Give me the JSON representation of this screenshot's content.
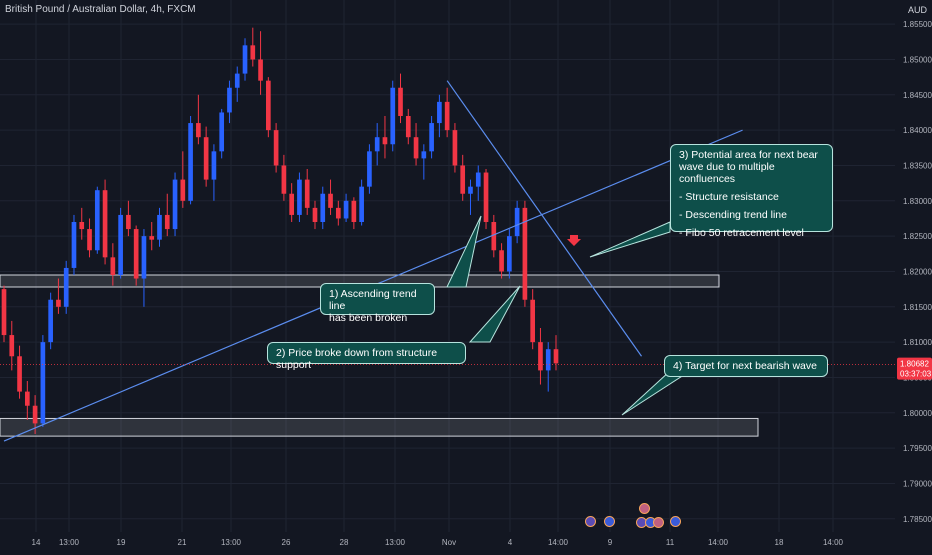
{
  "header": {
    "title": "British Pound / Australian Dollar, 4h, FXCM",
    "currency": "AUD"
  },
  "price_scale": {
    "last_price": "1.80682",
    "countdown": "03:37:03",
    "last_price_color": "#f23645"
  },
  "colors": {
    "background": "#131722",
    "up_candle": "#2962ff",
    "down_candle": "#f23645",
    "trendline": "#5b8def",
    "zone_fill": "#ffffff",
    "callout_fill": "#0e4f4a",
    "arrow": "#f23645"
  },
  "annotations": {
    "note_1": [
      "1) Ascending trend line",
      "has been broken"
    ],
    "note_2": [
      "2) Price broke down from structure support"
    ],
    "note_3_title": [
      "3) Potential area for next bear",
      "wave due to multiple confluences"
    ],
    "note_3_items": [
      "- Structure resistance",
      "- Descending trend line",
      "- Fibo 50 retracement level"
    ],
    "note_4": [
      "4) Target for next bearish wave"
    ]
  },
  "chart_data": {
    "type": "candlestick",
    "title": "British Pound / Australian Dollar, 4h, FXCM",
    "y_axis_ticks": [
      "1.85500",
      "1.85000",
      "1.84500",
      "1.84000",
      "1.83500",
      "1.83000",
      "1.82500",
      "1.82000",
      "1.81500",
      "1.81000",
      "1.80500",
      "1.80000",
      "1.79500",
      "1.79000",
      "1.78500"
    ],
    "x_axis_ticks": [
      "14",
      "13:00",
      "19",
      "21",
      "13:00",
      "26",
      "28",
      "13:00",
      "Nov",
      "4",
      "14:00",
      "9",
      "11",
      "14:00",
      "18",
      "14:00"
    ],
    "ylim": [
      1.782,
      1.857
    ],
    "grid": true,
    "series": [
      {
        "name": "GBPAUD 4h",
        "ohlc": [
          [
            1.8175,
            1.818,
            1.81,
            1.811
          ],
          [
            1.811,
            1.813,
            1.806,
            1.808
          ],
          [
            1.808,
            1.8095,
            1.802,
            1.803
          ],
          [
            1.803,
            1.8045,
            1.799,
            1.801
          ],
          [
            1.801,
            1.8025,
            1.797,
            1.7985
          ],
          [
            1.7985,
            1.811,
            1.798,
            1.81
          ],
          [
            1.81,
            1.817,
            1.809,
            1.816
          ],
          [
            1.816,
            1.819,
            1.814,
            1.815
          ],
          [
            1.815,
            1.8215,
            1.814,
            1.8205
          ],
          [
            1.8205,
            1.828,
            1.8195,
            1.827
          ],
          [
            1.827,
            1.829,
            1.8245,
            1.826
          ],
          [
            1.826,
            1.8275,
            1.822,
            1.823
          ],
          [
            1.823,
            1.832,
            1.8225,
            1.8315
          ],
          [
            1.8315,
            1.833,
            1.821,
            1.822
          ],
          [
            1.822,
            1.824,
            1.818,
            1.8195
          ],
          [
            1.8195,
            1.829,
            1.819,
            1.828
          ],
          [
            1.828,
            1.83,
            1.825,
            1.826
          ],
          [
            1.826,
            1.8265,
            1.818,
            1.819
          ],
          [
            1.819,
            1.826,
            1.815,
            1.825
          ],
          [
            1.825,
            1.827,
            1.823,
            1.8245
          ],
          [
            1.8245,
            1.829,
            1.8235,
            1.828
          ],
          [
            1.828,
            1.831,
            1.825,
            1.826
          ],
          [
            1.826,
            1.834,
            1.825,
            1.833
          ],
          [
            1.833,
            1.837,
            1.829,
            1.83
          ],
          [
            1.83,
            1.842,
            1.8295,
            1.841
          ],
          [
            1.841,
            1.845,
            1.838,
            1.839
          ],
          [
            1.839,
            1.8405,
            1.832,
            1.833
          ],
          [
            1.833,
            1.838,
            1.83,
            1.837
          ],
          [
            1.837,
            1.843,
            1.836,
            1.8425
          ],
          [
            1.8425,
            1.847,
            1.841,
            1.846
          ],
          [
            1.846,
            1.849,
            1.844,
            1.848
          ],
          [
            1.848,
            1.853,
            1.847,
            1.852
          ],
          [
            1.852,
            1.8545,
            1.849,
            1.85
          ],
          [
            1.85,
            1.854,
            1.845,
            1.847
          ],
          [
            1.847,
            1.8475,
            1.839,
            1.84
          ],
          [
            1.84,
            1.841,
            1.834,
            1.835
          ],
          [
            1.835,
            1.8365,
            1.83,
            1.831
          ],
          [
            1.831,
            1.8325,
            1.827,
            1.828
          ],
          [
            1.828,
            1.834,
            1.827,
            1.833
          ],
          [
            1.833,
            1.8345,
            1.828,
            1.829
          ],
          [
            1.829,
            1.83,
            1.826,
            1.827
          ],
          [
            1.827,
            1.832,
            1.826,
            1.831
          ],
          [
            1.831,
            1.833,
            1.828,
            1.829
          ],
          [
            1.829,
            1.83,
            1.8265,
            1.8275
          ],
          [
            1.8275,
            1.831,
            1.827,
            1.83
          ],
          [
            1.83,
            1.8305,
            1.826,
            1.827
          ],
          [
            1.827,
            1.833,
            1.8265,
            1.832
          ],
          [
            1.832,
            1.838,
            1.831,
            1.837
          ],
          [
            1.837,
            1.841,
            1.835,
            1.839
          ],
          [
            1.839,
            1.842,
            1.836,
            1.838
          ],
          [
            1.838,
            1.847,
            1.837,
            1.846
          ],
          [
            1.846,
            1.848,
            1.841,
            1.842
          ],
          [
            1.842,
            1.843,
            1.838,
            1.839
          ],
          [
            1.839,
            1.841,
            1.835,
            1.836
          ],
          [
            1.836,
            1.838,
            1.833,
            1.837
          ],
          [
            1.837,
            1.842,
            1.836,
            1.841
          ],
          [
            1.841,
            1.845,
            1.839,
            1.844
          ],
          [
            1.844,
            1.846,
            1.839,
            1.84
          ],
          [
            1.84,
            1.841,
            1.834,
            1.835
          ],
          [
            1.835,
            1.8365,
            1.83,
            1.831
          ],
          [
            1.831,
            1.833,
            1.828,
            1.832
          ],
          [
            1.832,
            1.835,
            1.83,
            1.834
          ],
          [
            1.834,
            1.8345,
            1.826,
            1.827
          ],
          [
            1.827,
            1.828,
            1.822,
            1.823
          ],
          [
            1.823,
            1.824,
            1.819,
            1.82
          ],
          [
            1.82,
            1.826,
            1.819,
            1.825
          ],
          [
            1.825,
            1.83,
            1.824,
            1.829
          ],
          [
            1.829,
            1.83,
            1.815,
            1.816
          ],
          [
            1.816,
            1.8175,
            1.809,
            1.81
          ],
          [
            1.81,
            1.812,
            1.804,
            1.806
          ],
          [
            1.806,
            1.81,
            1.803,
            1.809
          ],
          [
            1.809,
            1.811,
            1.806,
            1.807
          ]
        ]
      }
    ],
    "zones": [
      {
        "label": "structure support / resistance",
        "low": 1.818,
        "high": 1.8195
      },
      {
        "label": "target zone",
        "low": 1.7967,
        "high": 1.7992
      }
    ],
    "trendlines": [
      {
        "label": "ascending trend line",
        "from": [
          0,
          1.796
        ],
        "to": [
          95,
          1.84
        ]
      },
      {
        "label": "descending trend line",
        "from": [
          57,
          1.847
        ],
        "to": [
          82,
          1.808
        ]
      }
    ],
    "last_price": 1.80682
  }
}
